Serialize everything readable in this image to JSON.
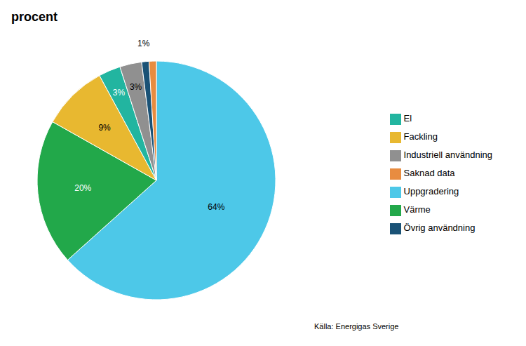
{
  "chart_data": {
    "type": "pie",
    "title": "procent",
    "categories": [
      "Uppgradering",
      "Värme",
      "Fackling",
      "El",
      "Industriell användning",
      "Övrig användning",
      "Saknad data"
    ],
    "values": [
      64,
      20,
      9,
      3,
      3,
      1,
      1
    ],
    "value_labels": [
      "64%",
      "20%",
      "9%",
      "3%",
      "3%",
      "1%",
      null
    ],
    "colors": [
      "#4DC8E8",
      "#22A84A",
      "#E8B830",
      "#22B5A0",
      "#909090",
      "#1A5276",
      "#E88C40"
    ],
    "data_labels": true,
    "legend": "right",
    "annotations": [
      "Källa: Energigas Sverige"
    ]
  }
}
